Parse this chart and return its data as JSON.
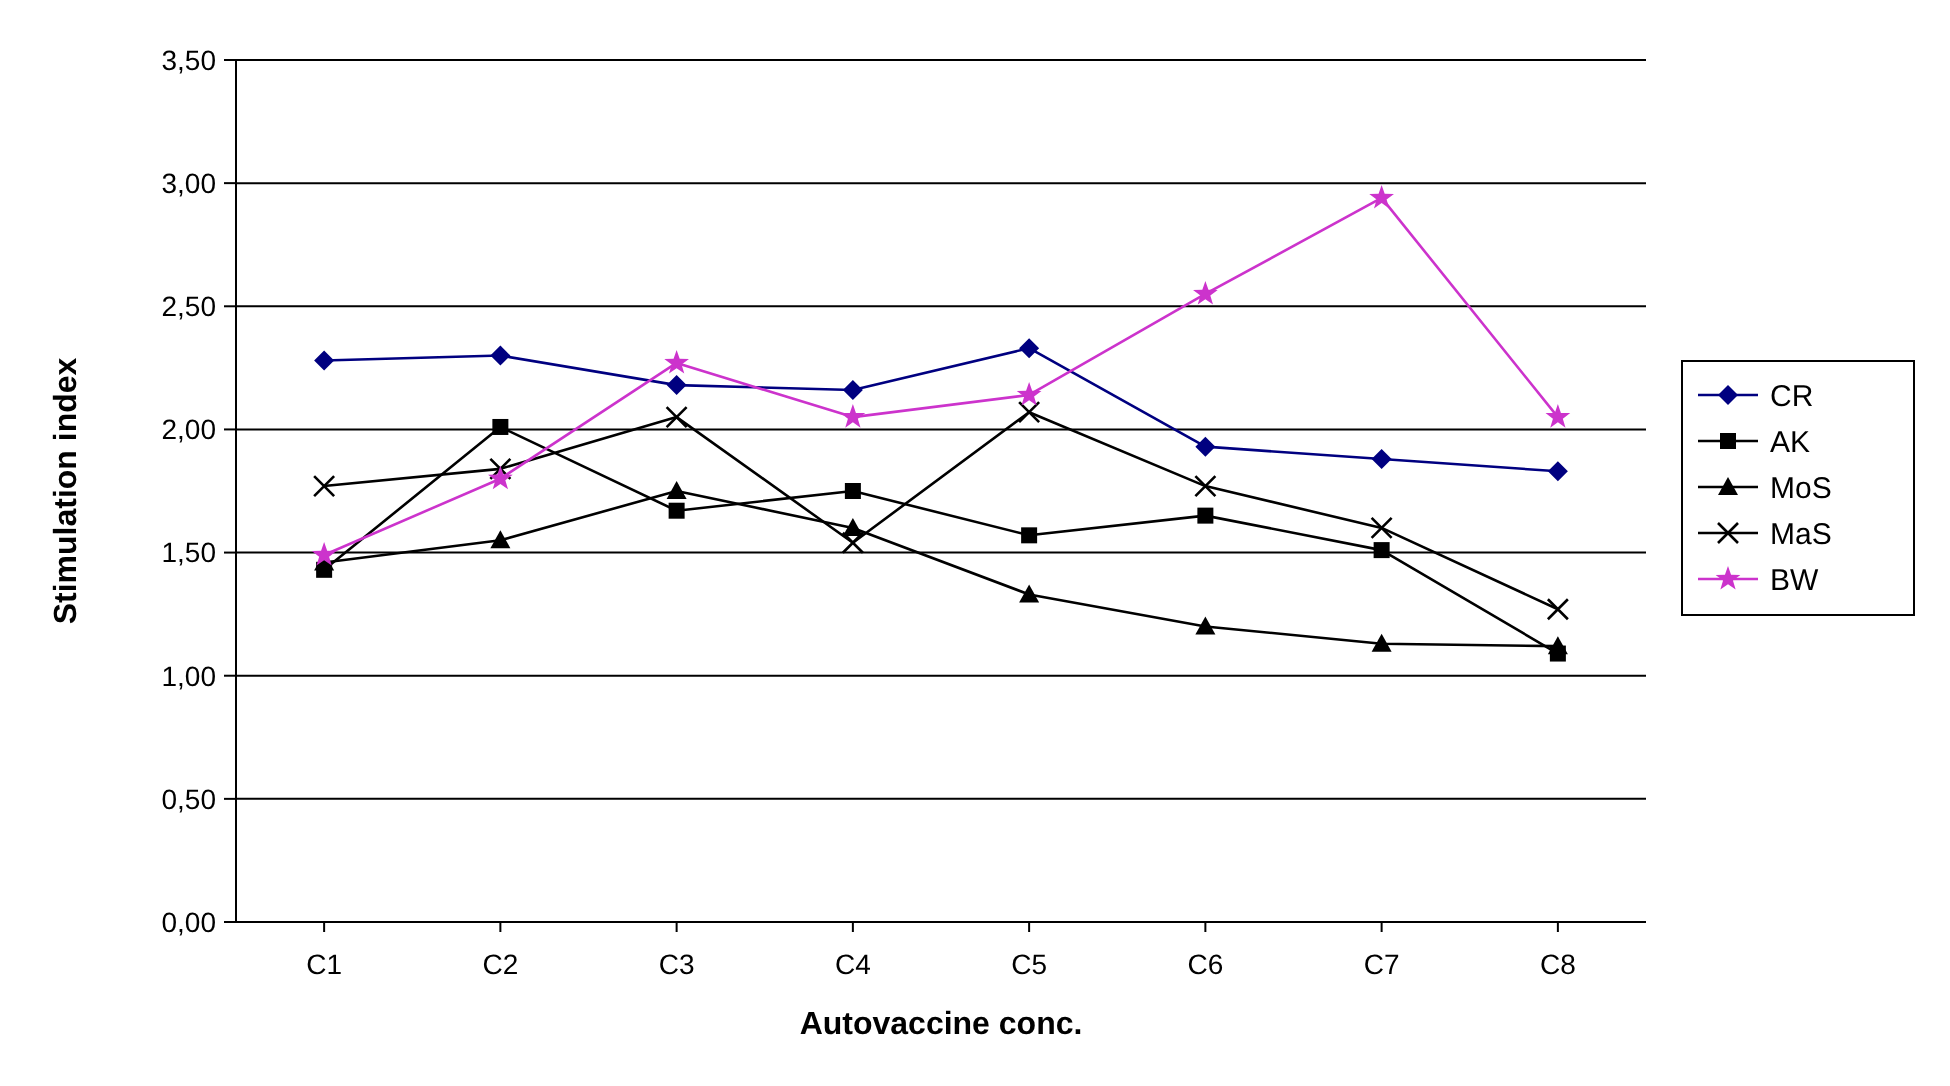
{
  "chart_data": {
    "type": "line",
    "xlabel": "Autovaccine conc.",
    "ylabel": "Stimulation index",
    "categories": [
      "C1",
      "C2",
      "C3",
      "C4",
      "C5",
      "C6",
      "C7",
      "C8"
    ],
    "series": [
      {
        "name": "CR",
        "color": "#000080",
        "marker": "diamond",
        "values": [
          2.28,
          2.3,
          2.18,
          2.16,
          2.33,
          1.93,
          1.88,
          1.83
        ]
      },
      {
        "name": "AK",
        "color": "#000000",
        "marker": "square",
        "values": [
          1.43,
          2.01,
          1.67,
          1.75,
          1.57,
          1.65,
          1.51,
          1.09
        ]
      },
      {
        "name": "MoS",
        "color": "#000000",
        "marker": "triangle",
        "values": [
          1.46,
          1.55,
          1.75,
          1.6,
          1.33,
          1.2,
          1.13,
          1.12
        ]
      },
      {
        "name": "MaS",
        "color": "#000000",
        "marker": "cross",
        "values": [
          1.77,
          1.84,
          2.05,
          1.54,
          2.07,
          1.77,
          1.6,
          1.27
        ]
      },
      {
        "name": "BW",
        "color": "#cc33cc",
        "marker": "star",
        "values": [
          1.49,
          1.8,
          2.27,
          2.05,
          2.14,
          2.55,
          2.94,
          2.05
        ]
      }
    ],
    "ylim": [
      0,
      3.5
    ],
    "yticks": [
      {
        "value": 0,
        "label": "0,00"
      },
      {
        "value": 0.5,
        "label": "0,50"
      },
      {
        "value": 1,
        "label": "1,00"
      },
      {
        "value": 1.5,
        "label": "1,50"
      },
      {
        "value": 2,
        "label": "2,00"
      },
      {
        "value": 2.5,
        "label": "2,50"
      },
      {
        "value": 3,
        "label": "3,00"
      },
      {
        "value": 3.5,
        "label": "3,50"
      }
    ],
    "grid": "y",
    "legend": "right",
    "line_style": "solid"
  }
}
